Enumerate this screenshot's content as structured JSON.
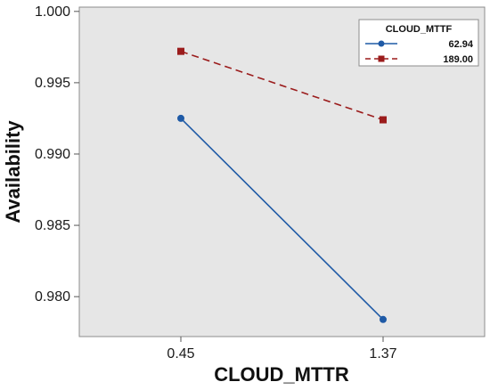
{
  "chart_data": {
    "type": "line",
    "title": "",
    "xlabel": "CLOUD_MTTR",
    "ylabel": "Availability",
    "categories": [
      "0.45",
      "1.37"
    ],
    "yticks": [
      "0.980",
      "0.985",
      "0.990",
      "0.995",
      "1.000"
    ],
    "ylim": [
      0.9772,
      1.0003
    ],
    "grid": false,
    "legend": {
      "title": "CLOUD_MTTF",
      "placement": "top-right"
    },
    "series": [
      {
        "name": "62.94",
        "values": [
          0.9925,
          0.9784
        ],
        "color": "#1f5aa6",
        "marker": "circle",
        "line_style": "solid"
      },
      {
        "name": "189.00",
        "values": [
          0.9972,
          0.9924
        ],
        "color": "#9b1c1c",
        "marker": "square",
        "line_style": "dashed"
      }
    ],
    "plot_background": "#e6e6e6"
  }
}
